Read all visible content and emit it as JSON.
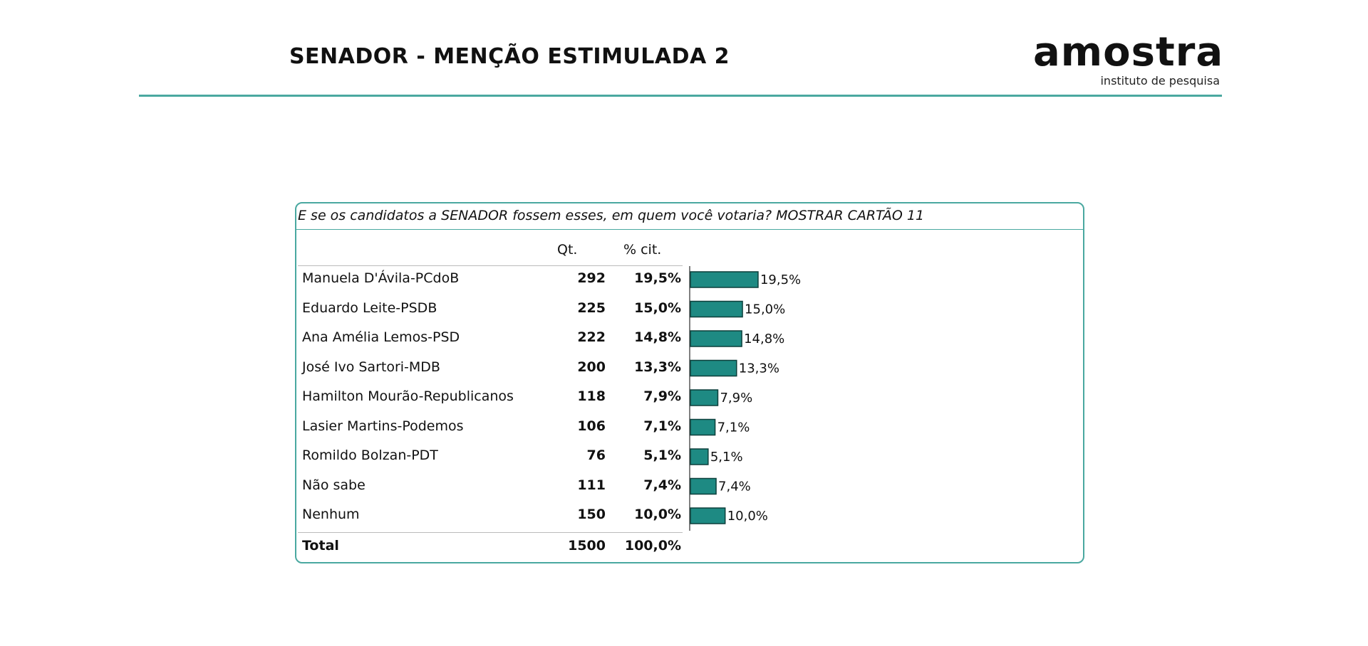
{
  "title": "SENADOR - MENÇÃO ESTIMULADA 2",
  "logo": {
    "word": "amostra",
    "subtitle": "instituto de pesquisa"
  },
  "question": "E se os candidatos a SENADOR fossem esses, em quem você votaria? MOSTRAR CARTÃO 11",
  "headers": {
    "qt": "Qt.",
    "pct": "% cit."
  },
  "colors": {
    "bar": "#1e8a83",
    "bar_stroke": "#0c3f3b",
    "accent": "#4aa8a0"
  },
  "chart_data": {
    "type": "bar",
    "orientation": "horizontal",
    "categories": [
      "Manuela D'Ávila-PCdoB",
      "Eduardo Leite-PSDB",
      "Ana Amélia Lemos-PSD",
      "José Ivo Sartori-MDB",
      "Hamilton Mourão-Republicanos",
      "Lasier Martins-Podemos",
      "Romildo Bolzan-PDT",
      "Não sabe",
      "Nenhum"
    ],
    "qt": [
      "292",
      "225",
      "222",
      "200",
      "118",
      "106",
      "76",
      "111",
      "150"
    ],
    "pct_labels": [
      "19,5%",
      "15,0%",
      "14,8%",
      "13,3%",
      "7,9%",
      "7,1%",
      "5,1%",
      "7,4%",
      "10,0%"
    ],
    "values": [
      19.5,
      15.0,
      14.8,
      13.3,
      7.9,
      7.1,
      5.1,
      7.4,
      10.0
    ]
  },
  "total": {
    "label": "Total",
    "qt": "1500",
    "pct": "100,0%"
  }
}
